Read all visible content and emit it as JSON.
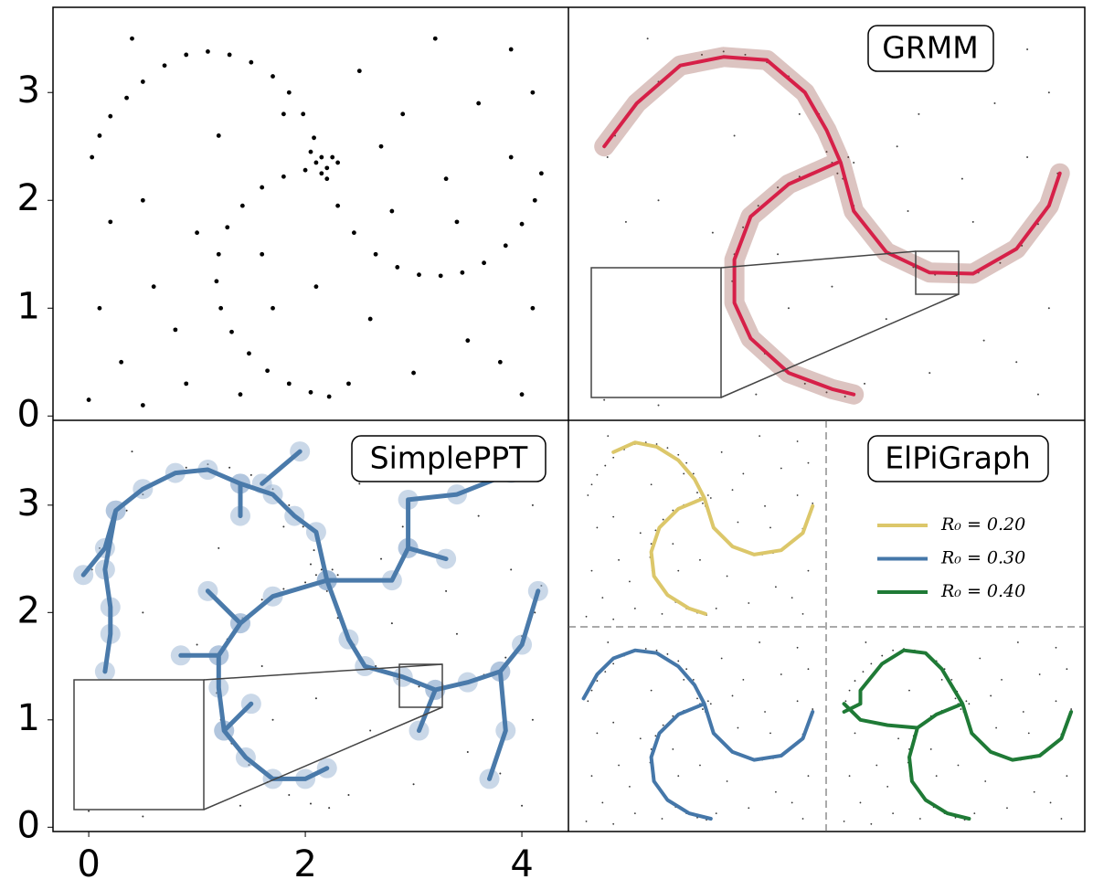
{
  "chart_data": [
    {
      "type": "scatter",
      "color": "#000000",
      "x": [
        0.03,
        0.1,
        0.2,
        0.35,
        0.5,
        0.7,
        0.9,
        1.1,
        1.3,
        1.5,
        1.7,
        1.85,
        1.98,
        2.08,
        2.15,
        2.2,
        2.3,
        2.45,
        2.65,
        2.85,
        3.05,
        3.25,
        3.45,
        3.65,
        3.85,
        4.0,
        4.12,
        4.18,
        2.0,
        1.8,
        1.6,
        1.42,
        1.28,
        1.2,
        1.18,
        1.22,
        1.32,
        1.48,
        1.65,
        1.85,
        2.05,
        2.22,
        2.1,
        2.2,
        2.25,
        2.15,
        2.3,
        2.05,
        0.0,
        0.3,
        0.6,
        0.2,
        0.5,
        0.9,
        1.0,
        1.6,
        1.8,
        2.5,
        2.9,
        3.2,
        3.6,
        3.9,
        4.1,
        3.3,
        2.8,
        3.5,
        3.0,
        2.6,
        4.0,
        4.1,
        3.8,
        2.4,
        1.7,
        0.1,
        0.4,
        1.2,
        2.7,
        3.9,
        0.8,
        3.4,
        2.1,
        0.5,
        1.4
      ],
      "y": [
        2.4,
        2.6,
        2.78,
        2.95,
        3.1,
        3.25,
        3.35,
        3.38,
        3.35,
        3.28,
        3.15,
        3.0,
        2.8,
        2.58,
        2.4,
        2.2,
        1.95,
        1.7,
        1.5,
        1.38,
        1.31,
        1.3,
        1.33,
        1.42,
        1.58,
        1.78,
        2.0,
        2.25,
        2.28,
        2.22,
        2.12,
        1.95,
        1.75,
        1.5,
        1.25,
        1.0,
        0.78,
        0.58,
        0.42,
        0.3,
        0.22,
        0.18,
        2.35,
        2.3,
        2.4,
        2.25,
        2.35,
        2.45,
        0.15,
        0.5,
        1.2,
        1.8,
        2.0,
        0.3,
        1.7,
        1.5,
        2.8,
        3.2,
        2.8,
        3.5,
        2.9,
        3.4,
        3.0,
        2.2,
        1.9,
        0.7,
        0.4,
        0.9,
        0.2,
        1.0,
        0.5,
        0.3,
        1.0,
        1.0,
        3.5,
        2.6,
        2.5,
        2.4,
        0.8,
        1.8,
        1.2,
        0.1,
        0.2
      ],
      "xlim": [
        -0.33,
        4.43
      ],
      "ylim": [
        -0.04,
        3.79
      ],
      "yticks": [
        0,
        1,
        2,
        3
      ]
    },
    {
      "type": "line",
      "title": "GRMM",
      "xlim": [
        -0.33,
        4.43
      ],
      "ylim": [
        -0.04,
        3.79
      ],
      "series": [
        {
          "color": "#d62048",
          "x": [
            0.0,
            0.3,
            0.7,
            1.1,
            1.5,
            1.85,
            2.05,
            2.18,
            null,
            2.18,
            2.3,
            2.6,
            3.0,
            3.4,
            3.8,
            4.1,
            4.2,
            null,
            2.15,
            1.7,
            1.35,
            1.2,
            1.2,
            1.35,
            1.7,
            2.1,
            2.3
          ],
          "y": [
            2.5,
            2.9,
            3.25,
            3.33,
            3.3,
            3.0,
            2.65,
            2.35,
            null,
            2.35,
            1.9,
            1.52,
            1.33,
            1.32,
            1.55,
            1.95,
            2.25,
            null,
            2.35,
            2.15,
            1.85,
            1.45,
            1.05,
            0.72,
            0.4,
            0.25,
            0.2
          ]
        }
      ]
    },
    {
      "type": "tree",
      "title": "SimplePPT",
      "xlim": [
        -0.33,
        4.43
      ],
      "ylim": [
        -0.04,
        3.79
      ],
      "xticks": [
        0,
        2,
        4
      ],
      "yticks": [
        0,
        1,
        2,
        3
      ],
      "series": [
        {
          "color": "#4a7aaa",
          "x": [
            -0.05,
            0.15,
            0.25,
            0.5,
            0.8,
            1.1,
            1.4,
            1.7,
            1.9,
            2.1,
            2.2,
            null,
            2.2,
            2.4,
            2.55,
            2.9,
            3.2,
            3.5,
            3.8,
            4.0,
            4.15,
            null,
            2.2,
            1.7,
            1.4,
            1.2,
            1.2,
            1.25,
            1.45,
            1.7,
            2.0,
            2.2,
            null,
            1.6,
            1.95,
            null,
            1.4,
            1.4,
            null,
            2.2,
            2.8,
            2.95,
            2.95,
            3.4,
            3.9,
            null,
            2.95,
            3.3,
            null,
            1.4,
            1.1,
            null,
            1.2,
            0.85,
            null,
            1.25,
            1.5,
            null,
            3.2,
            3.05,
            null,
            3.8,
            3.85,
            3.7,
            null,
            0.25,
            0.15,
            0.2,
            0.2,
            0.15
          ],
          "y": [
            2.35,
            2.6,
            2.95,
            3.15,
            3.3,
            3.33,
            3.2,
            3.1,
            2.9,
            2.75,
            2.3,
            null,
            2.3,
            1.75,
            1.5,
            1.4,
            1.28,
            1.35,
            1.45,
            1.7,
            2.2,
            null,
            2.3,
            2.15,
            1.9,
            1.6,
            1.3,
            0.9,
            0.65,
            0.45,
            0.45,
            0.55,
            null,
            3.2,
            3.5,
            null,
            3.2,
            2.9,
            null,
            2.3,
            2.3,
            2.6,
            3.05,
            3.1,
            3.3,
            null,
            2.6,
            2.5,
            null,
            1.9,
            2.2,
            null,
            1.6,
            1.6,
            null,
            0.9,
            1.15,
            null,
            1.28,
            0.9,
            null,
            1.45,
            0.9,
            0.45,
            null,
            2.95,
            2.4,
            2.05,
            1.8,
            1.45
          ]
        }
      ]
    },
    {
      "type": "facet-line",
      "title": "ElPiGraph",
      "xlim": [
        -0.33,
        4.43
      ],
      "ylim": [
        -0.04,
        3.79
      ],
      "series": [
        {
          "name": "R₀ = 0.20",
          "color": "#dcc76a",
          "x": [
            0.5,
            0.9,
            1.3,
            1.7,
            2.0,
            2.18,
            null,
            2.18,
            2.35,
            2.7,
            3.1,
            3.6,
            4.0,
            4.18,
            null,
            2.18,
            1.7,
            1.35,
            1.2,
            1.25,
            1.5,
            1.9,
            2.2
          ],
          "y": [
            3.2,
            3.38,
            3.3,
            3.05,
            2.7,
            2.35,
            null,
            2.35,
            1.8,
            1.45,
            1.3,
            1.38,
            1.7,
            2.2,
            null,
            2.35,
            2.15,
            1.8,
            1.35,
            0.9,
            0.55,
            0.3,
            0.2
          ]
        },
        {
          "name": "R₀ = 0.30",
          "color": "#4577a9",
          "x": [
            -0.05,
            0.2,
            0.5,
            0.9,
            1.3,
            1.7,
            2.0,
            2.18,
            null,
            2.18,
            2.35,
            2.7,
            3.1,
            3.6,
            4.0,
            4.18,
            null,
            2.18,
            1.7,
            1.35,
            1.2,
            1.25,
            1.5,
            1.9,
            2.3
          ],
          "y": [
            2.45,
            2.9,
            3.2,
            3.35,
            3.3,
            3.05,
            2.7,
            2.35,
            null,
            2.35,
            1.8,
            1.45,
            1.3,
            1.38,
            1.7,
            2.2,
            null,
            2.35,
            2.15,
            1.8,
            1.35,
            0.9,
            0.55,
            0.3,
            0.2
          ]
        },
        {
          "name": "R₀ = 0.40",
          "color": "#1f7a36",
          "x": [
            0.0,
            0.3,
            0.3,
            0.7,
            1.1,
            1.5,
            1.8,
            2.18,
            null,
            2.18,
            2.35,
            2.7,
            3.1,
            3.6,
            4.0,
            4.18,
            null,
            2.18,
            1.7,
            1.35,
            0.8,
            0.3,
            0.0,
            null,
            1.35,
            1.2,
            1.25,
            1.5,
            1.9,
            2.3
          ],
          "y": [
            2.2,
            2.35,
            2.6,
            3.1,
            3.35,
            3.3,
            3.0,
            2.35,
            null,
            2.35,
            1.8,
            1.45,
            1.3,
            1.38,
            1.7,
            2.2,
            null,
            2.35,
            2.15,
            1.9,
            1.95,
            2.05,
            2.35,
            null,
            1.9,
            1.35,
            0.9,
            0.55,
            0.3,
            0.2
          ]
        }
      ]
    }
  ]
}
